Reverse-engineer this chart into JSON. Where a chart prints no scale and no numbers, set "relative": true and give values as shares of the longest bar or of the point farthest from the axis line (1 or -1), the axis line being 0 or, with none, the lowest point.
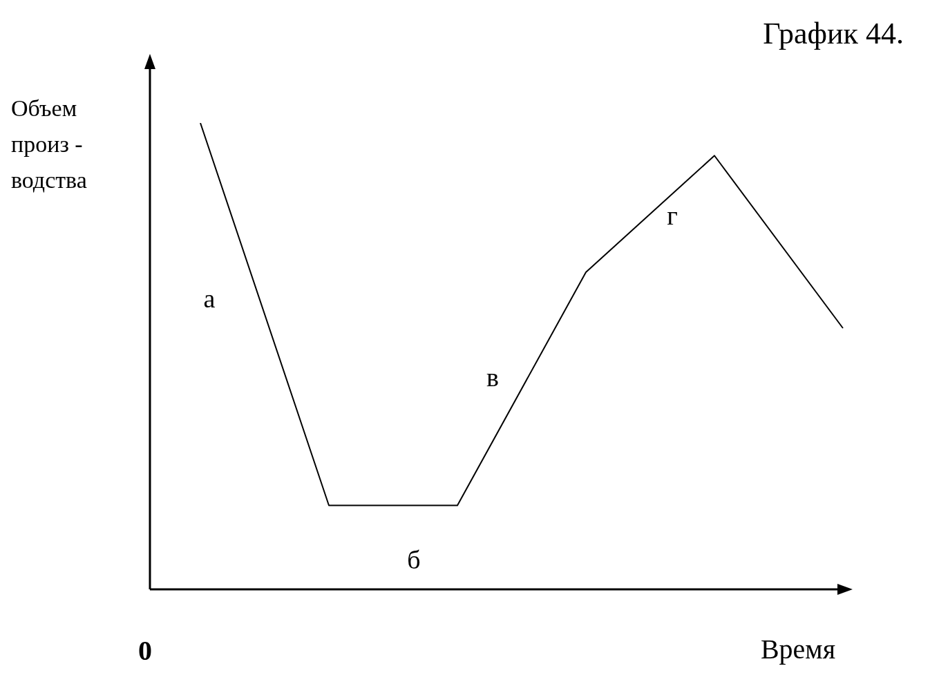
{
  "chart_data": {
    "type": "line",
    "title": "График 44.",
    "xlabel": "Время",
    "ylabel": "Объем\nпроиз -\nводства",
    "categories": [
      null,
      null,
      null,
      null,
      null,
      null
    ],
    "series": [
      {
        "color": "#000000",
        "values": [
          1,
          0.18,
          0.18,
          0.68,
          0.93,
          0.56
        ]
      }
    ],
    "relative": true,
    "legend": false,
    "marker": "none",
    "line_style": "solid",
    "annotations": [
      "а",
      "б",
      "в",
      "г",
      "0"
    ]
  }
}
